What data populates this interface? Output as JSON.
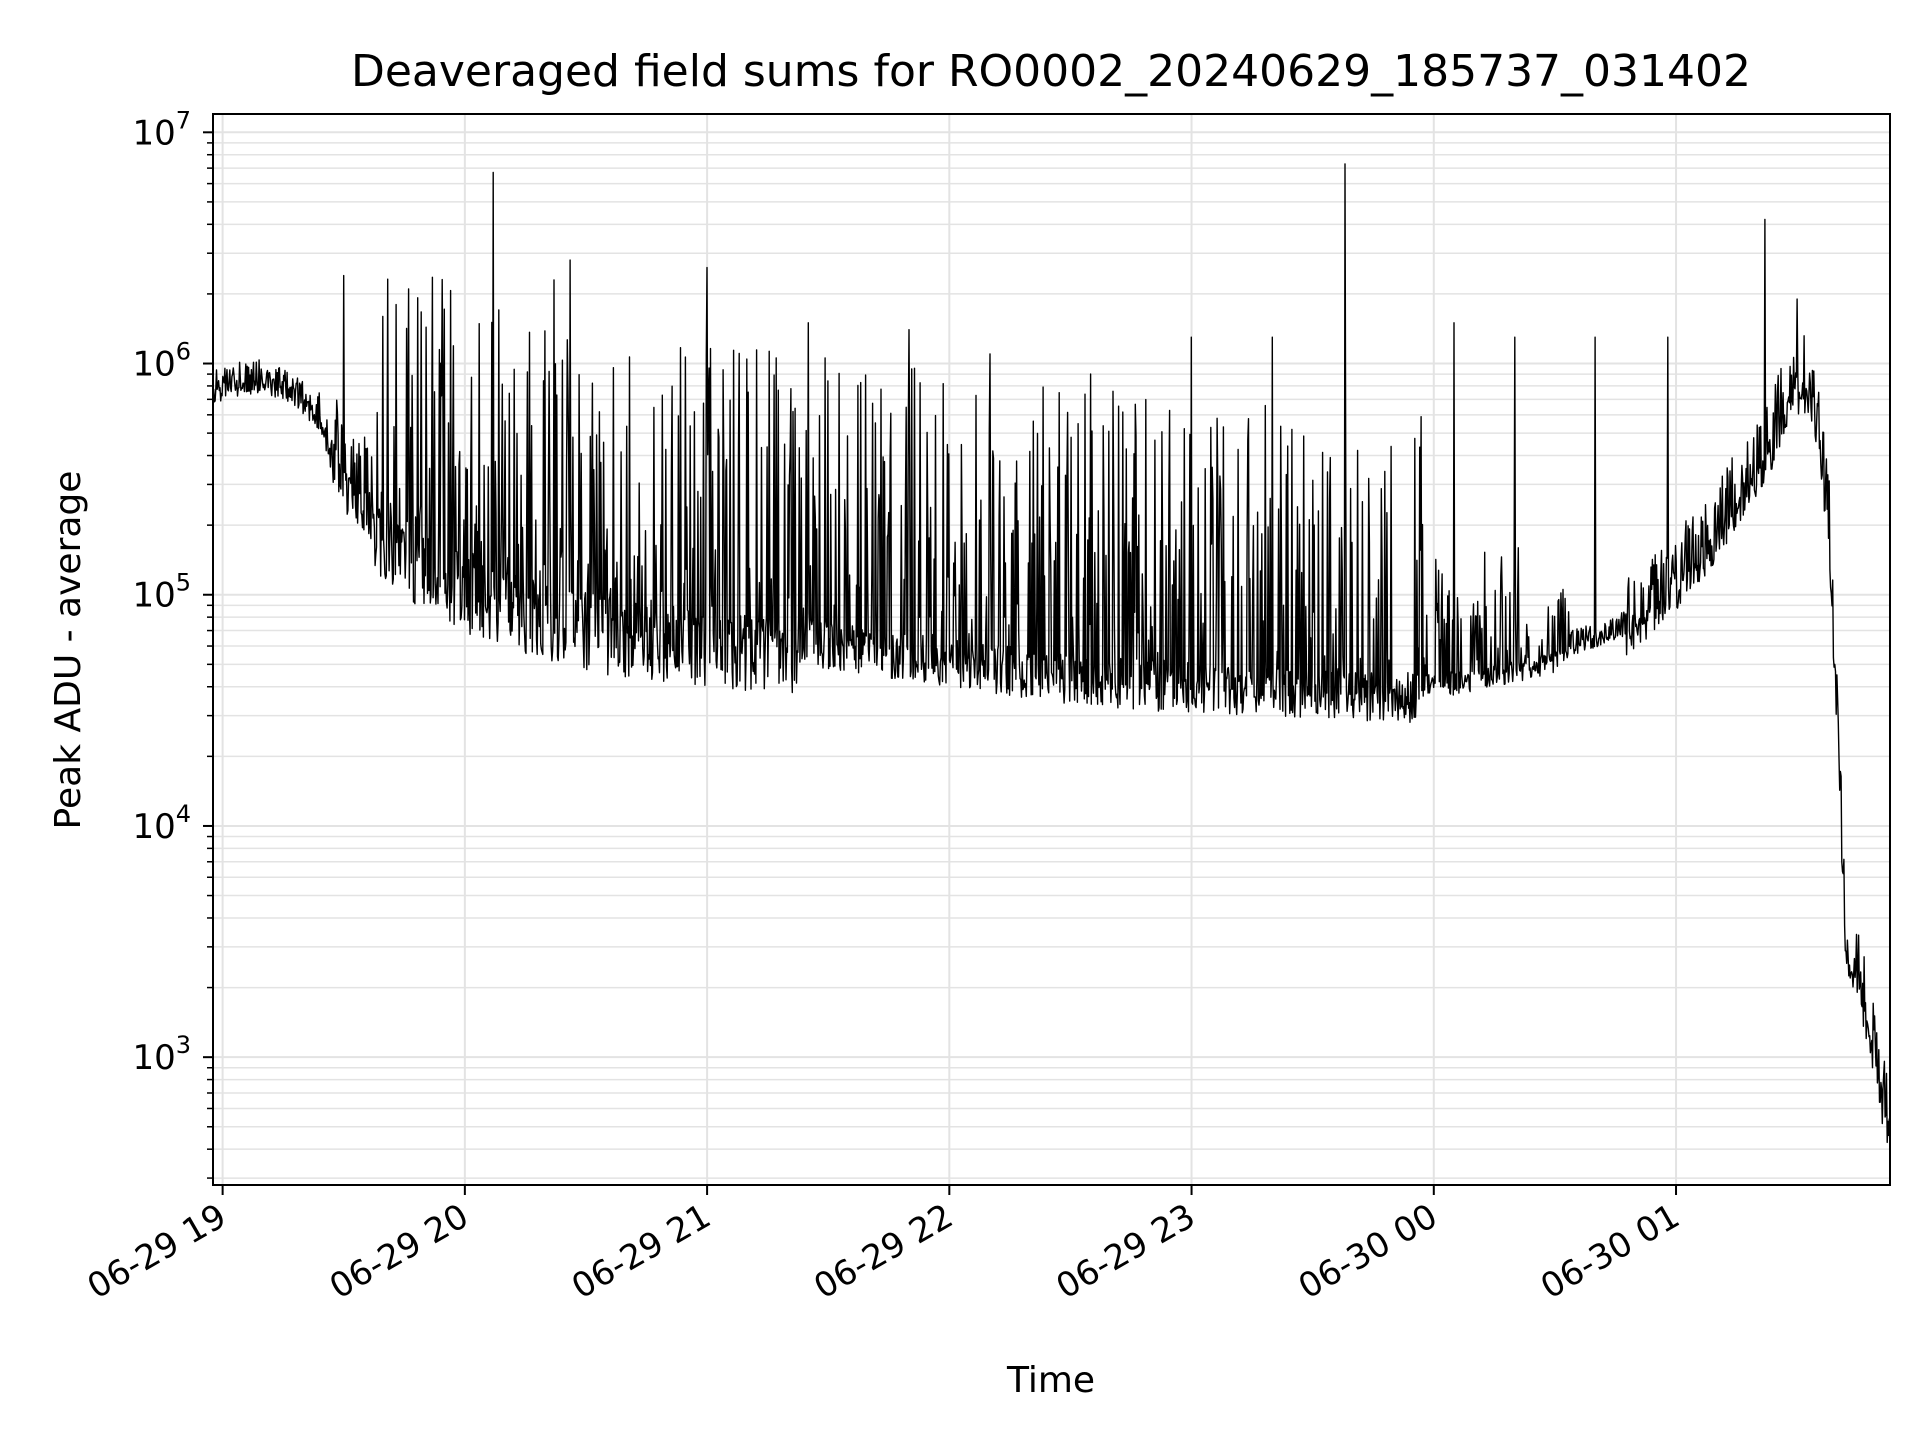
{
  "chart_data": {
    "type": "line",
    "title": "Deaveraged field sums for RO0002_20240629_185737_031402",
    "xlabel": "Time",
    "ylabel": "Peak ADU - average",
    "yscale": "log",
    "ylim": [
      280,
      12000000
    ],
    "xlim": [
      "2024-06-29 18:57:37",
      "2024-06-30 01:53:00"
    ],
    "grid": true,
    "legend": "none",
    "line_color": "#000000",
    "x_ticks": [
      {
        "t": "2024-06-29 19:00",
        "label": "06-29 19"
      },
      {
        "t": "2024-06-29 20:00",
        "label": "06-29 20"
      },
      {
        "t": "2024-06-29 21:00",
        "label": "06-29 21"
      },
      {
        "t": "2024-06-29 22:00",
        "label": "06-29 22"
      },
      {
        "t": "2024-06-29 23:00",
        "label": "06-29 23"
      },
      {
        "t": "2024-06-30 00:00",
        "label": "06-30 00"
      },
      {
        "t": "2024-06-30 01:00",
        "label": "06-30 01"
      }
    ],
    "y_ticks": [
      {
        "value": 1000,
        "base": "10",
        "exp": "3"
      },
      {
        "value": 10000,
        "base": "10",
        "exp": "4"
      },
      {
        "value": 100000,
        "base": "10",
        "exp": "5"
      },
      {
        "value": 1000000,
        "base": "10",
        "exp": "6"
      },
      {
        "value": 10000000,
        "base": "10",
        "exp": "7"
      }
    ],
    "series": [
      {
        "x": [
          "2024-06-29 18:57:37",
          "2024-06-29 19:02",
          "2024-06-29 19:10",
          "2024-06-29 19:17",
          "2024-06-29 19:20",
          "2024-06-29 19:24",
          "2024-06-29 19:28",
          "2024-06-29 19:30",
          "2024-06-29 19:33",
          "2024-06-29 19:36",
          "2024-06-29 19:40",
          "2024-06-29 19:44",
          "2024-06-29 19:48",
          "2024-06-29 19:52",
          "2024-06-29 19:56",
          "2024-06-29 20:00",
          "2024-06-29 20:04",
          "2024-06-29 20:08",
          "2024-06-29 20:12",
          "2024-06-29 20:16",
          "2024-06-29 20:20",
          "2024-06-29 20:25",
          "2024-06-29 20:30",
          "2024-06-29 20:35",
          "2024-06-29 20:40",
          "2024-06-29 20:45",
          "2024-06-29 20:50",
          "2024-06-29 20:55",
          "2024-06-29 21:00",
          "2024-06-29 21:05",
          "2024-06-29 21:10",
          "2024-06-29 21:15",
          "2024-06-29 21:20",
          "2024-06-29 21:25",
          "2024-06-29 21:30",
          "2024-06-29 21:35",
          "2024-06-29 21:40",
          "2024-06-29 21:45",
          "2024-06-29 21:50",
          "2024-06-29 21:55",
          "2024-06-29 22:00",
          "2024-06-29 22:05",
          "2024-06-29 22:10",
          "2024-06-29 22:15",
          "2024-06-29 22:20",
          "2024-06-29 22:25",
          "2024-06-29 22:30",
          "2024-06-29 22:35",
          "2024-06-29 22:40",
          "2024-06-29 22:45",
          "2024-06-29 22:50",
          "2024-06-29 22:55",
          "2024-06-29 23:00",
          "2024-06-29 23:05",
          "2024-06-29 23:10",
          "2024-06-29 23:15",
          "2024-06-29 23:20",
          "2024-06-29 23:25",
          "2024-06-29 23:30",
          "2024-06-29 23:35",
          "2024-06-29 23:40",
          "2024-06-29 23:45",
          "2024-06-29 23:50",
          "2024-06-29 23:55",
          "2024-06-30 00:00",
          "2024-06-30 00:05",
          "2024-06-30 00:10",
          "2024-06-30 00:15",
          "2024-06-30 00:20",
          "2024-06-30 00:25",
          "2024-06-30 00:30",
          "2024-06-30 00:35",
          "2024-06-30 00:40",
          "2024-06-30 00:45",
          "2024-06-30 00:50",
          "2024-06-30 00:55",
          "2024-06-30 01:00",
          "2024-06-30 01:05",
          "2024-06-30 01:10",
          "2024-06-30 01:15",
          "2024-06-30 01:20",
          "2024-06-30 01:24",
          "2024-06-30 01:28",
          "2024-06-30 01:31",
          "2024-06-30 01:33",
          "2024-06-30 01:35",
          "2024-06-30 01:38",
          "2024-06-30 01:42",
          "2024-06-30 01:46",
          "2024-06-30 01:50",
          "2024-06-30 01:53"
        ],
        "base": [
          800000,
          850000,
          900000,
          800000,
          720000,
          620000,
          450000,
          360000,
          320000,
          280000,
          250000,
          230000,
          200000,
          180000,
          165000,
          150000,
          140000,
          130000,
          125000,
          120000,
          115000,
          110000,
          105000,
          100000,
          98000,
          96000,
          94000,
          92000,
          90000,
          88000,
          86000,
          84000,
          82000,
          80000,
          78000,
          76000,
          74000,
          72000,
          70000,
          68000,
          66000,
          64000,
          62000,
          60000,
          58000,
          57000,
          56000,
          55000,
          54000,
          53000,
          52000,
          52000,
          51000,
          51000,
          50000,
          50000,
          50000,
          49000,
          49000,
          48000,
          48000,
          47000,
          47000,
          46000,
          45000,
          46000,
          48000,
          50000,
          52000,
          55000,
          58000,
          62000,
          66000,
          70000,
          80000,
          95000,
          120000,
          150000,
          200000,
          270000,
          370000,
          500000,
          800000,
          850000,
          800000,
          600000,
          200000,
          3500,
          2000,
          900,
          500
        ],
        "peaks": [
          {
            "x": "2024-06-29 19:30",
            "y": 2400000
          },
          {
            "x": "2024-06-29 19:46",
            "y": 2100000
          },
          {
            "x": "2024-06-29 20:07",
            "y": 6700000
          },
          {
            "x": "2024-06-29 20:22",
            "y": 2300000
          },
          {
            "x": "2024-06-29 20:26",
            "y": 2800000
          },
          {
            "x": "2024-06-29 21:00",
            "y": 2600000
          },
          {
            "x": "2024-06-29 21:25",
            "y": 1500000
          },
          {
            "x": "2024-06-29 21:50",
            "y": 1400000
          },
          {
            "x": "2024-06-29 22:10",
            "y": 1100000
          },
          {
            "x": "2024-06-29 22:35",
            "y": 900000
          },
          {
            "x": "2024-06-29 23:00",
            "y": 1300000
          },
          {
            "x": "2024-06-29 23:20",
            "y": 1300000
          },
          {
            "x": "2024-06-29 23:38",
            "y": 7300000
          },
          {
            "x": "2024-06-30 00:05",
            "y": 1500000
          },
          {
            "x": "2024-06-30 00:20",
            "y": 1300000
          },
          {
            "x": "2024-06-30 00:40",
            "y": 1300000
          },
          {
            "x": "2024-06-30 00:58",
            "y": 1300000
          },
          {
            "x": "2024-06-30 01:22",
            "y": 4200000
          },
          {
            "x": "2024-06-30 01:30",
            "y": 1900000
          }
        ]
      }
    ]
  }
}
